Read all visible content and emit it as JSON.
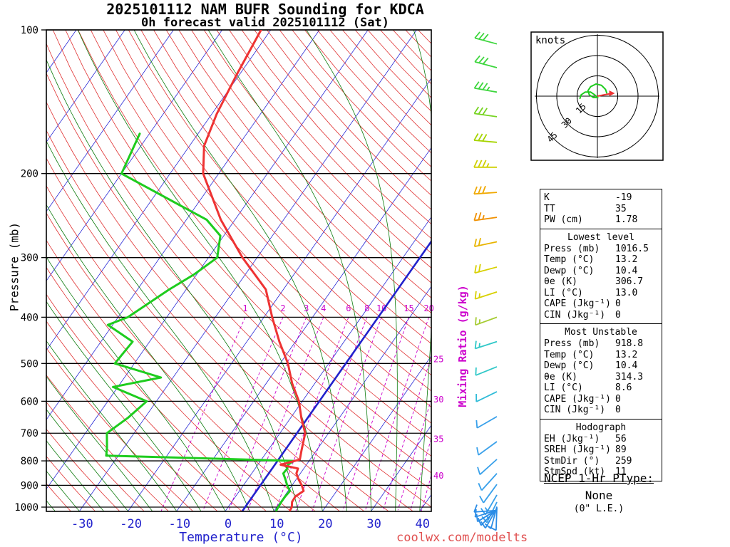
{
  "header": {
    "title_line1": "2025101112 NAM BUFR Sounding for KDCA",
    "title_line2": "0h forecast valid 2025101112 (Sat)"
  },
  "watermark": "coolwx.com/modelts",
  "axes": {
    "pressure_label": "Pressure (mb)",
    "temperature_label": "Temperature (°C)",
    "mixing_label": "Mixing Ratio (g/kg)",
    "pressure_ticks": [
      100,
      200,
      300,
      400,
      500,
      600,
      700,
      800,
      900,
      1000
    ],
    "temperature_ticks": [
      -30,
      -20,
      -10,
      0,
      10,
      20,
      30,
      40
    ]
  },
  "hodograph": {
    "unit": "knots",
    "rings": [
      15,
      30,
      45
    ]
  },
  "panels": [
    {
      "header": "",
      "rows": [
        [
          "K",
          "-19"
        ],
        [
          "TT",
          "35"
        ],
        [
          "PW (cm)",
          "1.78"
        ]
      ]
    },
    {
      "header": "Lowest level",
      "rows": [
        [
          "Press (mb)",
          "1016.5"
        ],
        [
          "Temp (°C)",
          "13.2"
        ],
        [
          "Dewp (°C)",
          "10.4"
        ],
        [
          "θe (K)",
          "306.7"
        ],
        [
          "LI (°C)",
          "13.0"
        ],
        [
          "CAPE (Jkg⁻¹)",
          "0"
        ],
        [
          "CIN (Jkg⁻¹)",
          "0"
        ]
      ]
    },
    {
      "header": "Most Unstable",
      "rows": [
        [
          "Press (mb)",
          "918.8"
        ],
        [
          "Temp (°C)",
          "13.2"
        ],
        [
          "Dewp (°C)",
          "10.4"
        ],
        [
          "θe (K)",
          "314.3"
        ],
        [
          "LI (°C)",
          "8.6"
        ],
        [
          "CAPE (Jkg⁻¹)",
          "0"
        ],
        [
          "CIN (Jkg⁻¹)",
          "0"
        ]
      ]
    },
    {
      "header": "Hodograph",
      "rows": [
        [
          "EH (Jkg⁻¹)",
          "56"
        ],
        [
          "SREH (Jkg⁻¹)",
          "89"
        ],
        [
          "StmDir (°)",
          "259"
        ],
        [
          "StmSpd (kt)",
          "11"
        ]
      ]
    }
  ],
  "ptype": {
    "title": "NCEP 1-Hr PType:",
    "value": "None",
    "note": "(0\" L.E.)"
  },
  "colors": {
    "temperature_curve": "#ee3333",
    "dewpoint_curve": "#1ecc1e",
    "isotherm": "#2929d6",
    "dry_adiabat": "#e03232",
    "moist_adiabat": "#0b7a0b",
    "mixing_ratio": "#cc00cc",
    "highlight_isotherm": "#2222cc",
    "axis_temp_label": "#2222cc",
    "storm_motion": "#ee3333",
    "hodograph_trace": "#1ecc1e"
  },
  "chart_data": {
    "type": "line",
    "title": "2025101112 NAM BUFR Sounding for KDCA — Skew-T / log-P",
    "pressure_axis_mb": [
      100,
      1020
    ],
    "temperature_axis_c": [
      -40,
      45
    ],
    "isotherm_step_c": 10,
    "dry_adiabat_theta_k_range": [
      240,
      470,
      5
    ],
    "moist_adiabat_start_c_range": [
      -40,
      40,
      5
    ],
    "mixing_ratio_lines_gkg": [
      1,
      2,
      3,
      4,
      6,
      8,
      10,
      15,
      20,
      25,
      30,
      35,
      40
    ],
    "highlight_isotherm_c": 3.5,
    "temperature_profile": [
      [
        1016.5,
        13.2
      ],
      [
        1000,
        13.1
      ],
      [
        975,
        12.4
      ],
      [
        950,
        12.3
      ],
      [
        925,
        13.2
      ],
      [
        900,
        12.0
      ],
      [
        875,
        10.5
      ],
      [
        850,
        9.2
      ],
      [
        830,
        8.8
      ],
      [
        815,
        4.7
      ],
      [
        795,
        7.9
      ],
      [
        760,
        6.9
      ],
      [
        700,
        5.2
      ],
      [
        650,
        2.2
      ],
      [
        600,
        -0.7
      ],
      [
        550,
        -4.7
      ],
      [
        500,
        -8.4
      ],
      [
        450,
        -13.3
      ],
      [
        400,
        -18.3
      ],
      [
        350,
        -23.6
      ],
      [
        300,
        -33.0
      ],
      [
        250,
        -42.9
      ],
      [
        200,
        -53.2
      ],
      [
        175,
        -57.0
      ],
      [
        150,
        -59.0
      ],
      [
        125,
        -60.5
      ],
      [
        100,
        -62.0
      ]
    ],
    "dewpoint_profile": [
      [
        1016.5,
        10.4
      ],
      [
        1000,
        10.3
      ],
      [
        975,
        10.2
      ],
      [
        950,
        10.2
      ],
      [
        925,
        10.4
      ],
      [
        900,
        9.0
      ],
      [
        875,
        7.8
      ],
      [
        850,
        6.5
      ],
      [
        830,
        6.6
      ],
      [
        815,
        6.2
      ],
      [
        800,
        6.8
      ],
      [
        780,
        -32.5
      ],
      [
        750,
        -33.5
      ],
      [
        700,
        -35.6
      ],
      [
        650,
        -33.5
      ],
      [
        600,
        -32.0
      ],
      [
        560,
        -41.0
      ],
      [
        535,
        -32.5
      ],
      [
        500,
        -44.0
      ],
      [
        450,
        -43.5
      ],
      [
        415,
        -51.0
      ],
      [
        400,
        -48.0
      ],
      [
        350,
        -43.5
      ],
      [
        325,
        -40.5
      ],
      [
        300,
        -38.2
      ],
      [
        270,
        -40.7
      ],
      [
        250,
        -45.8
      ],
      [
        200,
        -70.0
      ],
      [
        165,
        -72.0
      ]
    ],
    "wind_barbs": [
      {
        "p": 107,
        "dir": 285,
        "spd": 30,
        "color": "#3ed63e"
      },
      {
        "p": 120,
        "dir": 285,
        "spd": 30,
        "color": "#3ed63e"
      },
      {
        "p": 135,
        "dir": 280,
        "spd": 35,
        "color": "#3ed63e"
      },
      {
        "p": 152,
        "dir": 278,
        "spd": 30,
        "color": "#77d422"
      },
      {
        "p": 172,
        "dir": 275,
        "spd": 30,
        "color": "#a6d400"
      },
      {
        "p": 194,
        "dir": 270,
        "spd": 35,
        "color": "#cfd000"
      },
      {
        "p": 219,
        "dir": 266,
        "spd": 30,
        "color": "#f0a800"
      },
      {
        "p": 247,
        "dir": 262,
        "spd": 25,
        "color": "#f09000"
      },
      {
        "p": 278,
        "dir": 258,
        "spd": 20,
        "color": "#e8b400"
      },
      {
        "p": 314,
        "dir": 255,
        "spd": 20,
        "color": "#d8d000"
      },
      {
        "p": 354,
        "dir": 252,
        "spd": 15,
        "color": "#d8d000"
      },
      {
        "p": 400,
        "dir": 250,
        "spd": 15,
        "color": "#a6cc33"
      },
      {
        "p": 450,
        "dir": 252,
        "spd": 15,
        "color": "#30c8c8"
      },
      {
        "p": 508,
        "dir": 248,
        "spd": 10,
        "color": "#30c8c8"
      },
      {
        "p": 573,
        "dir": 244,
        "spd": 10,
        "color": "#30bcd8"
      },
      {
        "p": 646,
        "dir": 240,
        "spd": 10,
        "color": "#38a0ea"
      },
      {
        "p": 729,
        "dir": 234,
        "spd": 10,
        "color": "#38a0ea"
      },
      {
        "p": 794,
        "dir": 228,
        "spd": 10,
        "color": "#38a0ea"
      },
      {
        "p": 850,
        "dir": 222,
        "spd": 10,
        "color": "#38a0ea"
      },
      {
        "p": 896,
        "dir": 216,
        "spd": 10,
        "color": "#38a0ea"
      },
      {
        "p": 943,
        "dir": 210,
        "spd": 15,
        "color": "#38a0ea"
      },
      {
        "p": 976,
        "dir": 206,
        "spd": 15,
        "color": "#38a0ea"
      },
      {
        "p": 998,
        "dir": 195,
        "spd": 10,
        "color": "#2a8ce6"
      },
      {
        "p": 1002,
        "dir": 182,
        "spd": 10,
        "color": "#2a8ce6"
      },
      {
        "p": 1006,
        "dir": 210,
        "spd": 10,
        "color": "#2a8ce6"
      },
      {
        "p": 1009,
        "dir": 224,
        "spd": 10,
        "color": "#2a8ce6"
      },
      {
        "p": 1012,
        "dir": 238,
        "spd": 10,
        "color": "#2a8ce6"
      },
      {
        "p": 1014,
        "dir": 252,
        "spd": 10,
        "color": "#2a8ce6"
      },
      {
        "p": 1016,
        "dir": 266,
        "spd": 10,
        "color": "#2a8ce6"
      }
    ],
    "hodograph_trace_kt": [
      [
        7,
        2
      ],
      [
        6,
        5
      ],
      [
        3,
        8
      ],
      [
        -1,
        9
      ],
      [
        -5,
        7
      ],
      [
        -7,
        4
      ],
      [
        -6,
        1
      ],
      [
        -3,
        -1
      ],
      [
        0,
        -1
      ],
      [
        -2,
        1
      ],
      [
        -5,
        3
      ],
      [
        -9,
        3
      ],
      [
        -12,
        1
      ],
      [
        -13,
        -2
      ]
    ],
    "storm_motion": {
      "dir_deg": 259,
      "spd_kt": 11
    }
  }
}
